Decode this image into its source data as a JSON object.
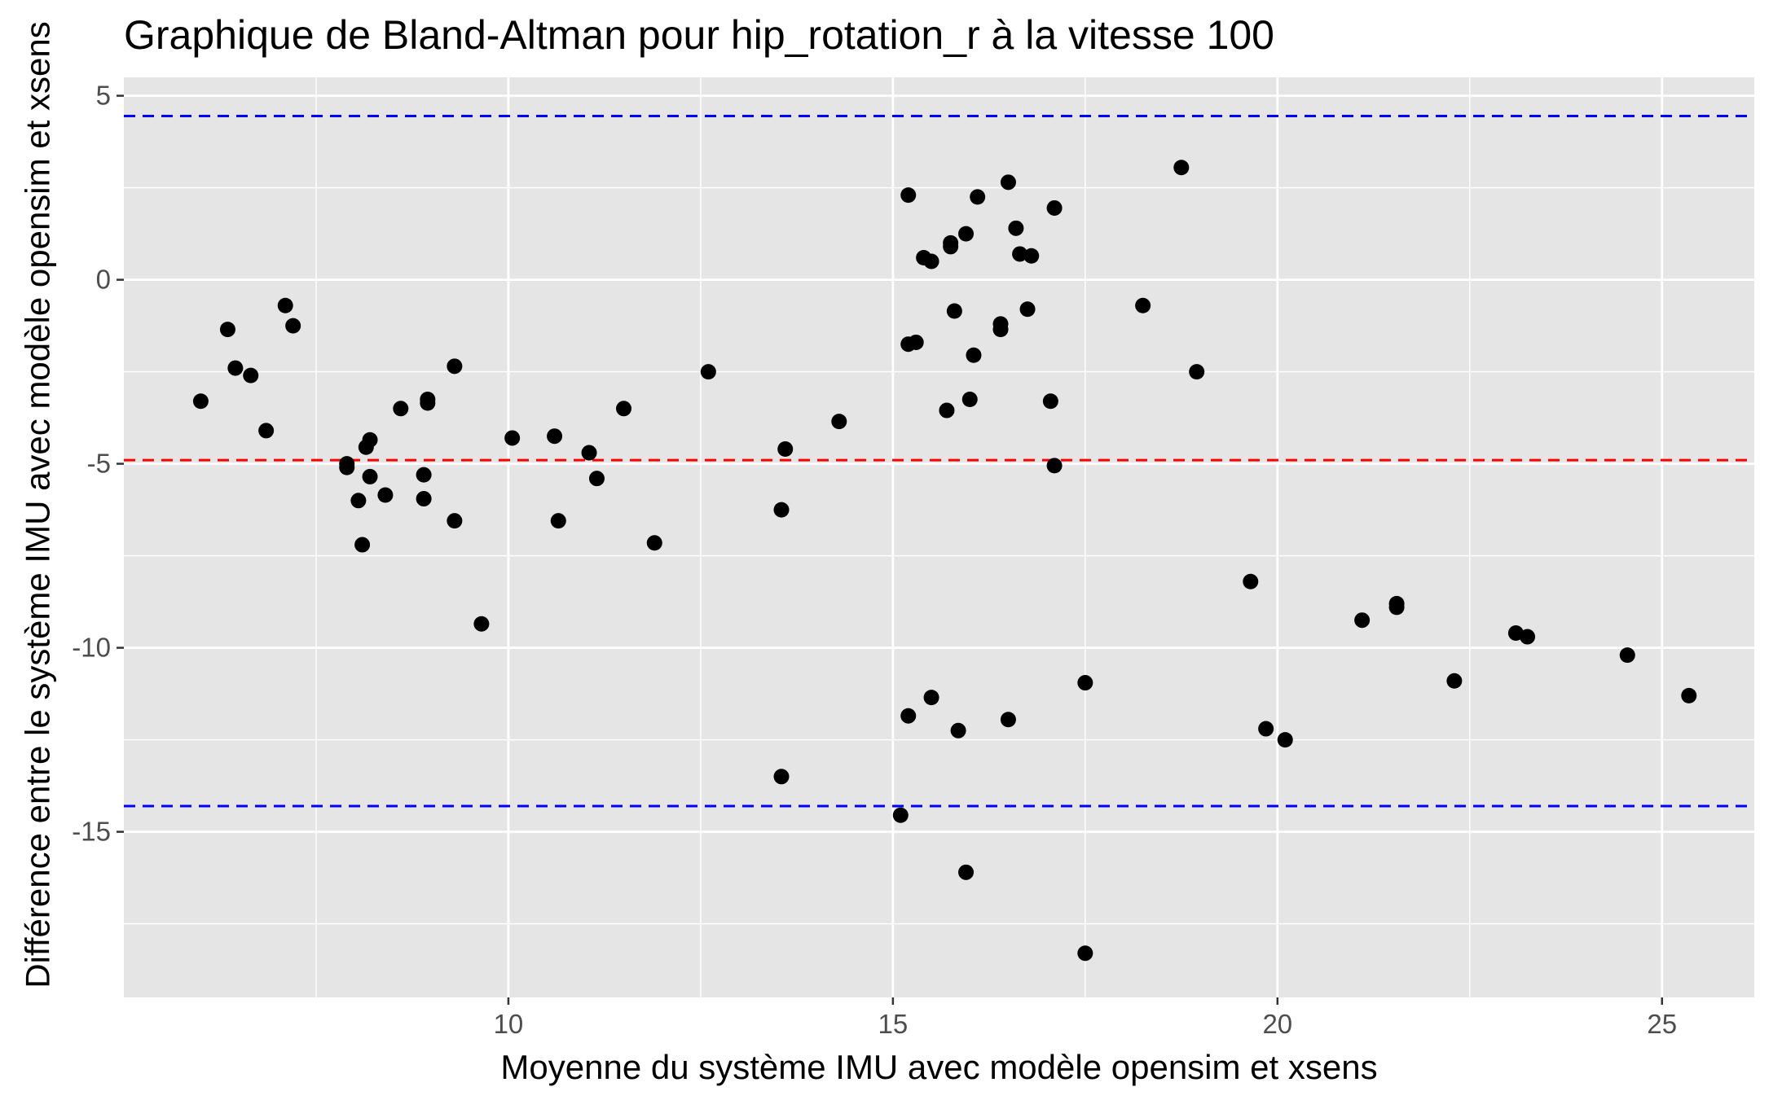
{
  "chart_data": {
    "type": "scatter",
    "title": "Graphique de Bland-Altman pour hip_rotation_r à la vitesse 100",
    "xlabel": "Moyenne du système IMU avec modèle opensim et xsens",
    "ylabel": "Différence entre le système IMU avec modèle opensim et xsens",
    "xlim": [
      5.0,
      26.2
    ],
    "ylim": [
      -19.5,
      5.5
    ],
    "xticks": [
      10,
      15,
      20,
      25
    ],
    "xtick_labels": [
      "10",
      "15",
      "20",
      "25"
    ],
    "yticks": [
      5,
      0,
      -5,
      -10,
      -15
    ],
    "ytick_labels": [
      "5",
      "0",
      "-5",
      "-10",
      "-15"
    ],
    "grid": true,
    "background": "#e5e5e5",
    "reference_lines": [
      {
        "y": 4.45,
        "color": "#0000ff",
        "style": "dashed"
      },
      {
        "y": -4.9,
        "color": "#ff0000",
        "style": "dashed"
      },
      {
        "y": -14.3,
        "color": "#0000ff",
        "style": "dashed"
      }
    ],
    "point_color": "#000000",
    "points": [
      [
        6.0,
        -3.3
      ],
      [
        6.35,
        -1.35
      ],
      [
        6.45,
        -2.4
      ],
      [
        6.65,
        -2.6
      ],
      [
        6.85,
        -4.1
      ],
      [
        7.1,
        -0.7
      ],
      [
        7.2,
        -1.25
      ],
      [
        7.9,
        -5.0
      ],
      [
        7.9,
        -5.1
      ],
      [
        8.05,
        -6.0
      ],
      [
        8.1,
        -7.2
      ],
      [
        8.15,
        -4.55
      ],
      [
        8.2,
        -4.35
      ],
      [
        8.2,
        -5.35
      ],
      [
        8.4,
        -5.85
      ],
      [
        8.6,
        -3.5
      ],
      [
        8.95,
        -3.35
      ],
      [
        8.95,
        -3.25
      ],
      [
        8.9,
        -5.3
      ],
      [
        8.9,
        -5.95
      ],
      [
        9.3,
        -2.35
      ],
      [
        9.3,
        -6.55
      ],
      [
        9.65,
        -9.35
      ],
      [
        10.05,
        -4.3
      ],
      [
        10.6,
        -4.25
      ],
      [
        10.65,
        -6.55
      ],
      [
        11.05,
        -4.7
      ],
      [
        11.15,
        -5.4
      ],
      [
        11.5,
        -3.5
      ],
      [
        11.9,
        -7.15
      ],
      [
        12.6,
        -2.5
      ],
      [
        13.55,
        -6.25
      ],
      [
        13.6,
        -4.6
      ],
      [
        13.55,
        -13.5
      ],
      [
        14.3,
        -3.85
      ],
      [
        15.1,
        -14.55
      ],
      [
        15.2,
        2.3
      ],
      [
        15.2,
        -1.75
      ],
      [
        15.3,
        -1.7
      ],
      [
        15.2,
        -11.85
      ],
      [
        15.4,
        0.6
      ],
      [
        15.5,
        0.5
      ],
      [
        15.5,
        -11.35
      ],
      [
        15.7,
        -3.55
      ],
      [
        15.75,
        0.9
      ],
      [
        15.75,
        1.0
      ],
      [
        15.8,
        -0.85
      ],
      [
        15.85,
        -12.25
      ],
      [
        15.95,
        1.25
      ],
      [
        16.0,
        -3.25
      ],
      [
        15.95,
        -16.1
      ],
      [
        16.05,
        -2.05
      ],
      [
        16.1,
        2.25
      ],
      [
        16.4,
        -1.35
      ],
      [
        16.4,
        -1.2
      ],
      [
        16.5,
        2.65
      ],
      [
        16.5,
        -11.95
      ],
      [
        16.6,
        1.4
      ],
      [
        16.65,
        0.7
      ],
      [
        16.75,
        -0.8
      ],
      [
        16.8,
        0.65
      ],
      [
        17.05,
        -3.3
      ],
      [
        17.1,
        -5.05
      ],
      [
        17.1,
        1.95
      ],
      [
        17.5,
        -10.95
      ],
      [
        17.5,
        -18.3
      ],
      [
        18.25,
        -0.7
      ],
      [
        18.75,
        3.05
      ],
      [
        18.95,
        -2.5
      ],
      [
        19.65,
        -8.2
      ],
      [
        19.85,
        -12.2
      ],
      [
        20.1,
        -12.5
      ],
      [
        21.1,
        -9.25
      ],
      [
        21.55,
        -8.8
      ],
      [
        21.55,
        -8.9
      ],
      [
        22.3,
        -10.9
      ],
      [
        23.1,
        -9.6
      ],
      [
        23.25,
        -9.7
      ],
      [
        24.55,
        -10.2
      ],
      [
        25.35,
        -11.3
      ]
    ]
  }
}
